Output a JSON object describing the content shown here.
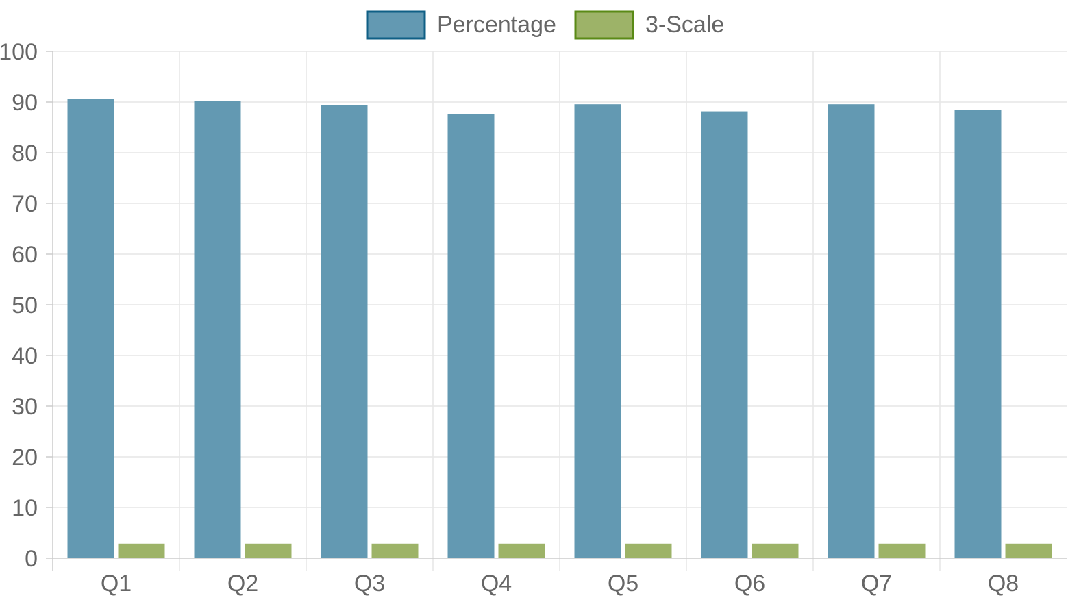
{
  "chart_data": {
    "type": "bar",
    "categories": [
      "Q1",
      "Q2",
      "Q3",
      "Q4",
      "Q5",
      "Q6",
      "Q7",
      "Q8"
    ],
    "series": [
      {
        "name": "Percentage",
        "values": [
          90.6,
          90.1,
          89.3,
          87.6,
          89.5,
          88.1,
          89.5,
          88.4
        ],
        "fill": "#6399b2",
        "stroke": "#0f5f85"
      },
      {
        "name": "3-Scale",
        "values": [
          2.8,
          2.8,
          2.8,
          2.8,
          2.8,
          2.8,
          2.8,
          2.8
        ],
        "fill": "#9db368",
        "stroke": "#5a8a16"
      }
    ],
    "ylim": [
      0,
      100
    ],
    "yticks": [
      "0",
      "10",
      "20",
      "30",
      "40",
      "50",
      "60",
      "70",
      "80",
      "90",
      "100"
    ],
    "grid": true,
    "legend_position": "top-center"
  }
}
